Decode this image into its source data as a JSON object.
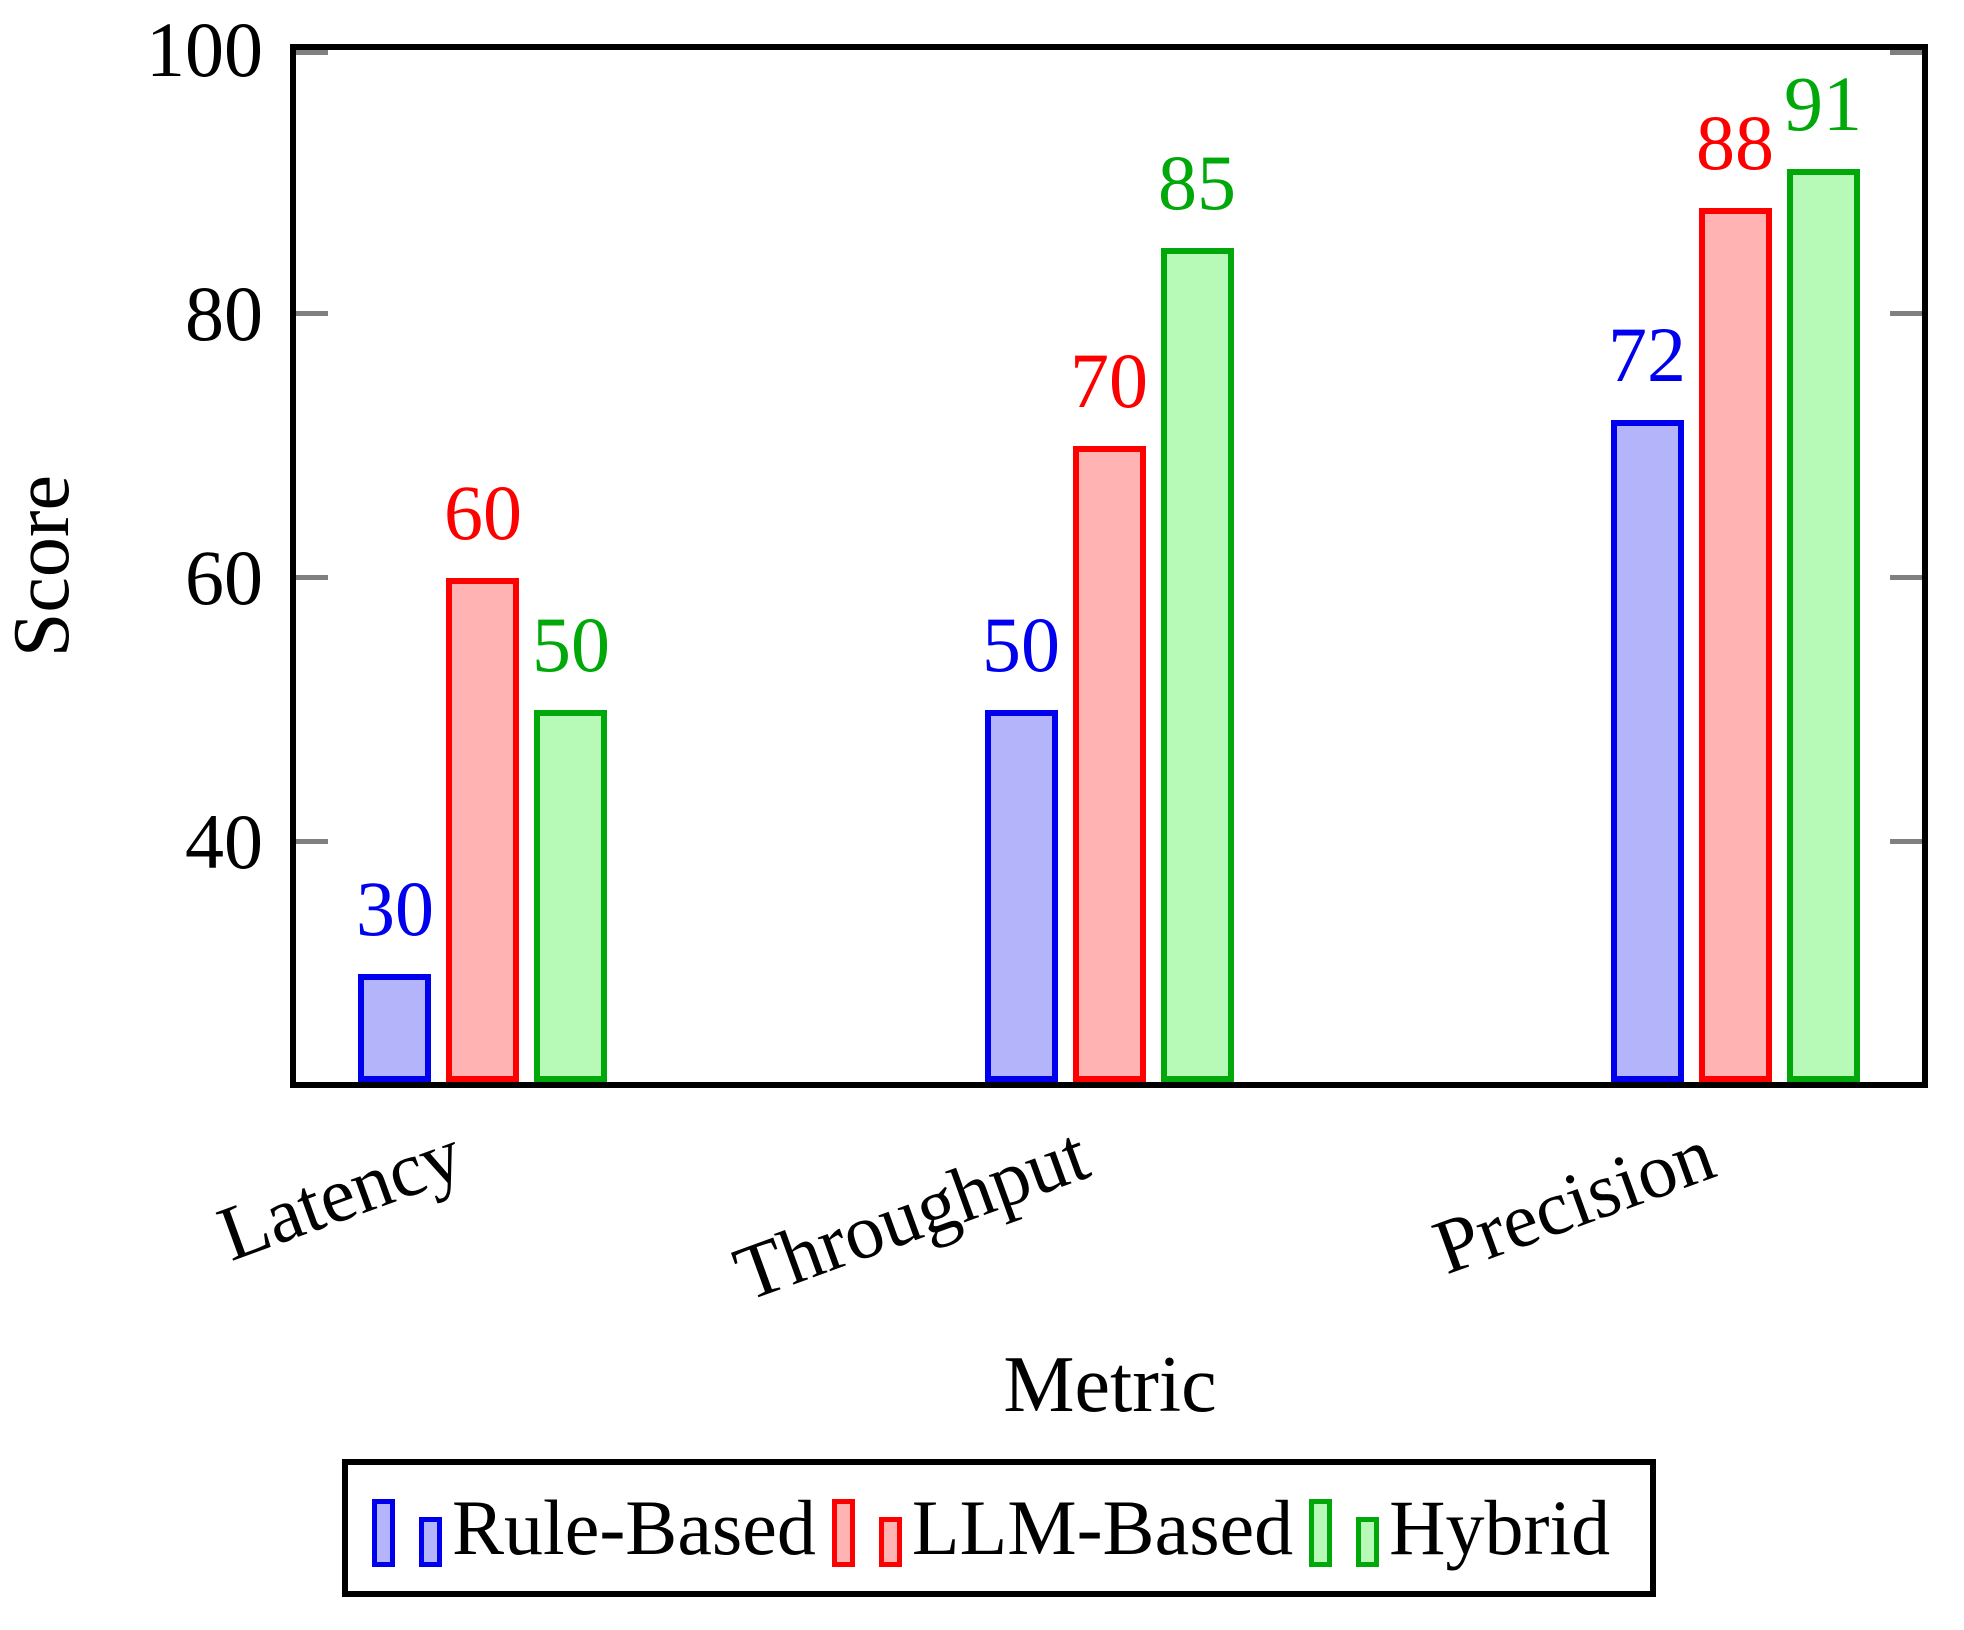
{
  "chart_data": {
    "type": "bar",
    "title": "",
    "xlabel": "Metric",
    "ylabel": "Score",
    "categories": [
      "Latency",
      "Throughput",
      "Precision"
    ],
    "series": [
      {
        "name": "Rule-Based",
        "color": "#0000ee",
        "fill": "#b4b4fa",
        "values": [
          30,
          50,
          72
        ]
      },
      {
        "name": "LLM-Based",
        "color": "#fe0000",
        "fill": "#ffb3b3",
        "values": [
          60,
          70,
          88
        ]
      },
      {
        "name": "Hybrid",
        "color": "#00a80a",
        "fill": "#b7fab7",
        "values": [
          50,
          85,
          91
        ]
      }
    ],
    "yticks": [
      40,
      60,
      80,
      100
    ],
    "ylim": [
      21.8,
      100
    ],
    "bar_value_labels": true,
    "grid": false,
    "legend_position": "below",
    "tick_color": "#808080"
  }
}
